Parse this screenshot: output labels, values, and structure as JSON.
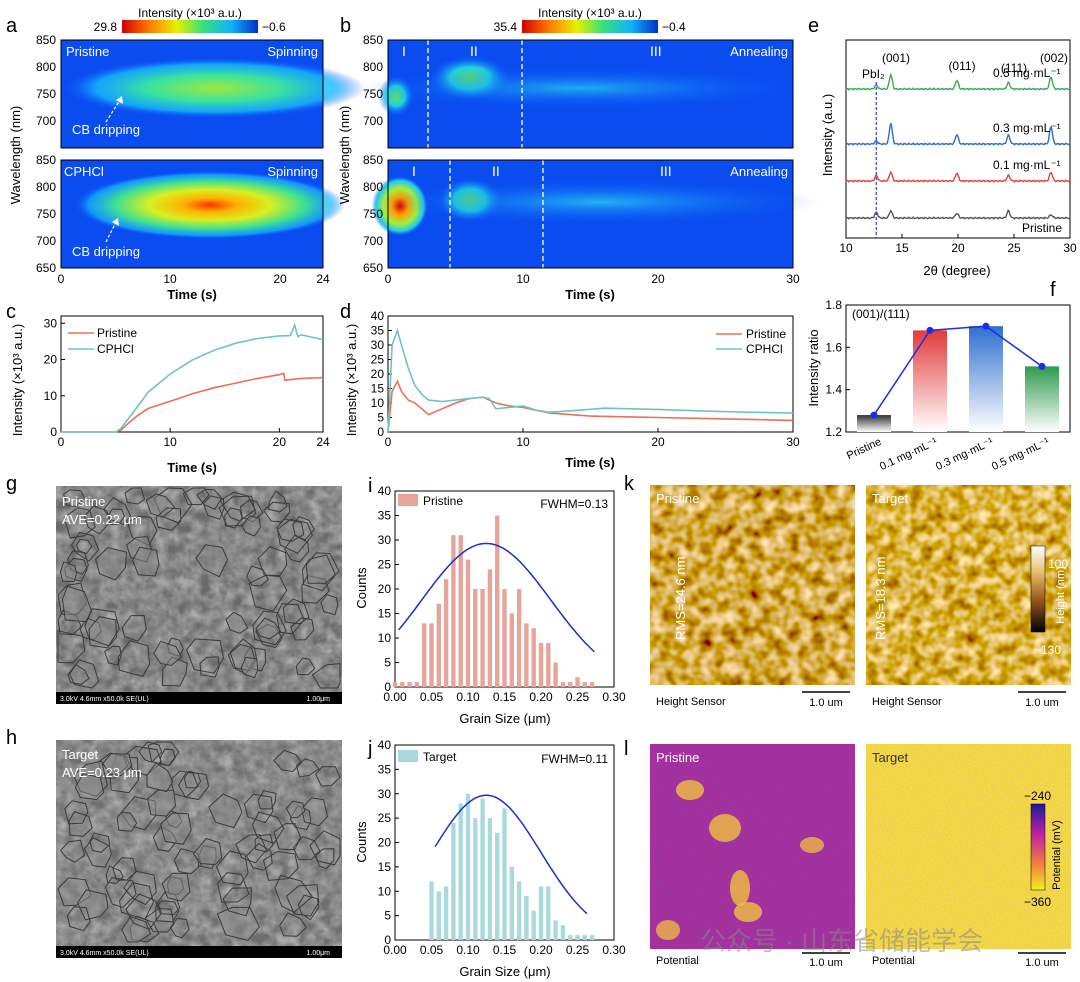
{
  "panels": {
    "a": {
      "letter": "a",
      "colorbar": {
        "label": "Intensity (×10³ a.u.)",
        "max": "29.8",
        "min": "−0.6"
      },
      "top": {
        "left": "Pristine",
        "right": "Spinning",
        "note": "CB dripping"
      },
      "bottom": {
        "left": "CPHCl",
        "right": "Spinning",
        "note": "CB dripping"
      },
      "ylabel": "Wavelength (nm)",
      "yticks_top": [
        "850",
        "800",
        "750",
        "700"
      ],
      "yticks_bottom": [
        "850",
        "800",
        "750",
        "700",
        "650"
      ],
      "xticks": [
        "0",
        "10",
        "20",
        "24"
      ],
      "xlabel": "Time (s)"
    },
    "b": {
      "letter": "b",
      "colorbar": {
        "label": "Intensity (×10³ a.u.)",
        "max": "35.4",
        "min": "−0.4"
      },
      "regions": [
        "I",
        "II",
        "III"
      ],
      "right": "Annealing",
      "ylabel": "Wavelength (nm)",
      "yticks_top": [
        "850",
        "800",
        "750",
        "700"
      ],
      "yticks_bottom": [
        "850",
        "800",
        "750",
        "700",
        "650"
      ],
      "xticks": [
        "0",
        "10",
        "20",
        "30"
      ],
      "xlabel": "Time (s)"
    },
    "c": {
      "letter": "c",
      "ylabel": "Intensity (×10³ a.u.)",
      "xlabel": "Time (s)"
    },
    "d": {
      "letter": "d",
      "ylabel": "Intensity (×10³ a.u.)",
      "xlabel": "Time (s)"
    },
    "e": {
      "letter": "e",
      "ylabel": "Intensity (a.u.)",
      "xlabel": "2θ (degree)",
      "pbi2": "PbI₂",
      "peaks": [
        "(001)",
        "(011)",
        "(111)",
        "(002)"
      ]
    },
    "f": {
      "letter": "f",
      "ylabel": "Intensity ratio"
    },
    "g": {
      "letter": "g",
      "label": "Pristine",
      "ave": "AVE=0.22 μm",
      "bar": "3.0kV 4.6mm x50.0k SE(UL)",
      "scale": "1.00μm"
    },
    "h": {
      "letter": "h",
      "label": "Target",
      "ave": "AVE=0.23 μm",
      "bar": "3.0kV 4.6mm x50.0k SE(UL)",
      "scale": "1.00μm"
    },
    "i": {
      "letter": "i",
      "legend": "Pristine",
      "fwhm": "FWHM=0.13",
      "ylabel": "Counts",
      "xlabel": "Grain Size (μm)"
    },
    "j": {
      "letter": "j",
      "legend": "Target",
      "fwhm": "FWHM=0.11",
      "ylabel": "Counts",
      "xlabel": "Grain Size (μm)"
    },
    "k": {
      "letter": "k",
      "left_label": "Pristine",
      "right_label": "Target",
      "rms_left": "RMS=24.6 nm",
      "rms_right": "RMS=18.3 nm",
      "sensor": "Height Sensor",
      "scale": "1.0 um",
      "cb_max": "100",
      "cb_min": "−130",
      "cb_label": "Height (nm)"
    },
    "l": {
      "letter": "l",
      "left_label": "Pristine",
      "right_label": "Target",
      "sensor": "Potential",
      "scale": "1.0 um",
      "cb_max": "−240",
      "cb_min": "−360",
      "cb_label": "Potential (mV)"
    }
  },
  "watermark": "公众号 · 山东省储能学会",
  "chart_data": [
    {
      "id": "c",
      "type": "line",
      "title": "",
      "xlabel": "Time (s)",
      "ylabel": "Intensity (×10³ a.u.)",
      "xlim": [
        0,
        24
      ],
      "ylim": [
        0,
        32
      ],
      "xticks": [
        0,
        10,
        20,
        24
      ],
      "yticks": [
        0,
        10,
        20,
        30
      ],
      "series": [
        {
          "name": "Pristine",
          "color": "#e8715a",
          "x": [
            0,
            5,
            5.5,
            6,
            7,
            8,
            10,
            12,
            14,
            16,
            18,
            20,
            20.4,
            20.5,
            22,
            24
          ],
          "y": [
            0,
            0,
            0.5,
            2,
            4.5,
            6.5,
            8.5,
            10.5,
            12.2,
            13.5,
            14.8,
            15.8,
            16.2,
            14.3,
            14.8,
            15.0
          ]
        },
        {
          "name": "CPHCl",
          "color": "#6fc3c6",
          "x": [
            0,
            5,
            5.5,
            6,
            7,
            8,
            10,
            12,
            14,
            16,
            18,
            20,
            21,
            21.4,
            21.7,
            22,
            24
          ],
          "y": [
            0,
            0,
            1,
            3,
            7,
            11,
            16,
            19.8,
            22.5,
            24.5,
            25.8,
            26.5,
            26.6,
            29.5,
            26.3,
            26.8,
            25.5
          ]
        }
      ]
    },
    {
      "id": "d",
      "type": "line",
      "title": "",
      "xlabel": "Time (s)",
      "ylabel": "Intensity (×10³ a.u.)",
      "xlim": [
        0,
        30
      ],
      "ylim": [
        0,
        40
      ],
      "xticks": [
        0,
        10,
        20,
        30
      ],
      "yticks": [
        0,
        5,
        10,
        15,
        20,
        25,
        30,
        35,
        40
      ],
      "series": [
        {
          "name": "Pristine",
          "color": "#e8715a",
          "x": [
            0,
            0.3,
            0.7,
            1,
            1.5,
            2,
            2.5,
            3,
            4,
            5,
            6,
            7,
            8,
            9,
            10,
            11,
            12,
            15,
            20,
            25,
            30
          ],
          "y": [
            0,
            14,
            17.5,
            14,
            11,
            10,
            8,
            6,
            8,
            10,
            11.5,
            12,
            10,
            9,
            8.5,
            7.5,
            6.5,
            5.5,
            5,
            4.5,
            4
          ]
        },
        {
          "name": "CPHCl",
          "color": "#6fc3c6",
          "x": [
            0,
            0.3,
            0.7,
            1,
            1.5,
            2,
            2.5,
            3,
            4,
            5,
            6,
            7,
            7.5,
            8,
            9,
            10,
            11,
            12,
            14,
            16,
            20,
            25,
            30
          ],
          "y": [
            0,
            30,
            35,
            30,
            22,
            16,
            13,
            11,
            10.5,
            11,
            11.5,
            12,
            11.5,
            8,
            8.5,
            9,
            7.5,
            6.8,
            7.5,
            8.2,
            7.8,
            7,
            6.5
          ]
        }
      ]
    },
    {
      "id": "e",
      "type": "line",
      "title": "",
      "xlabel": "2θ (degree)",
      "ylabel": "Intensity (a.u.)",
      "xlim": [
        10,
        30
      ],
      "xticks": [
        10,
        15,
        20,
        25,
        30
      ],
      "pbi2_position": 12.7,
      "peak_positions": [
        14.0,
        19.9,
        24.5,
        28.3
      ],
      "series": [
        {
          "name": "Pristine",
          "color": "#555555",
          "label": "Pristine",
          "peak_heights": [
            0.35,
            0.45,
            0.3,
            0.45,
            0.2
          ]
        },
        {
          "name": "0.1 mg·mL⁻¹",
          "color": "#e0413a",
          "label": "0.1 mg·mL⁻¹",
          "peak_heights": [
            0.35,
            0.55,
            0.5,
            0.35,
            0.55
          ]
        },
        {
          "name": "0.3 mg·mL⁻¹",
          "color": "#2a6fc9",
          "label": "0.3 mg·mL⁻¹",
          "peak_heights": [
            0.2,
            1.3,
            0.6,
            0.55,
            1.1
          ]
        },
        {
          "name": "0.5 mg·mL⁻¹",
          "color": "#3aa85a",
          "label": "0.5 mg·mL⁻¹",
          "peak_heights": [
            0.25,
            0.9,
            0.55,
            0.4,
            0.75
          ]
        }
      ]
    },
    {
      "id": "f",
      "type": "bar",
      "title": "(001)/(111)",
      "xlabel": "",
      "ylabel": "Intensity ratio",
      "ylim": [
        1.2,
        1.8
      ],
      "yticks": [
        1.2,
        1.4,
        1.6,
        1.8
      ],
      "categories": [
        "Pristine",
        "0.1 mg·mL⁻¹",
        "0.3 mg·mL⁻¹",
        "0.5 mg·mL⁻¹"
      ],
      "values": [
        1.28,
        1.68,
        1.7,
        1.51
      ],
      "colors": [
        "#333333",
        "#e23b3b",
        "#2f6fd0",
        "#2e9a4f"
      ]
    },
    {
      "id": "i",
      "type": "bar",
      "title": "",
      "xlabel": "Grain Size (μm)",
      "ylabel": "Counts",
      "xlim": [
        0,
        0.3
      ],
      "ylim": [
        0,
        40
      ],
      "xticks": [
        0.0,
        0.05,
        0.1,
        0.15,
        0.2,
        0.25,
        0.3
      ],
      "yticks": [
        0,
        5,
        10,
        15,
        20,
        25,
        30,
        35,
        40
      ],
      "x": [
        0.0,
        0.01,
        0.02,
        0.03,
        0.04,
        0.05,
        0.06,
        0.07,
        0.08,
        0.09,
        0.1,
        0.11,
        0.12,
        0.13,
        0.14,
        0.15,
        0.16,
        0.17,
        0.18,
        0.19,
        0.2,
        0.21,
        0.22,
        0.23,
        0.24,
        0.25,
        0.26,
        0.27,
        0.28
      ],
      "values": [
        1,
        1,
        1,
        1,
        13,
        13,
        17,
        22,
        31,
        31,
        26,
        20,
        20,
        24,
        35,
        20,
        15,
        20,
        13,
        12,
        9,
        9,
        5,
        1,
        1,
        2,
        1,
        1,
        0
      ],
      "fit": {
        "type": "gaussian",
        "center": 0.125,
        "amplitude": 29.3,
        "fwhm": 0.13
      }
    },
    {
      "id": "j",
      "type": "bar",
      "title": "",
      "xlabel": "Grain Size (μm)",
      "ylabel": "Counts",
      "xlim": [
        0,
        0.3
      ],
      "ylim": [
        0,
        40
      ],
      "xticks": [
        0.0,
        0.05,
        0.1,
        0.15,
        0.2,
        0.25,
        0.3
      ],
      "yticks": [
        0,
        5,
        10,
        15,
        20,
        25,
        30,
        35,
        40
      ],
      "x": [
        0.05,
        0.06,
        0.07,
        0.08,
        0.09,
        0.1,
        0.11,
        0.12,
        0.13,
        0.14,
        0.15,
        0.16,
        0.17,
        0.18,
        0.19,
        0.2,
        0.21,
        0.22,
        0.23,
        0.24,
        0.25,
        0.26,
        0.27
      ],
      "values": [
        12,
        10,
        11,
        24,
        28,
        30,
        25,
        29,
        25,
        22,
        27,
        15,
        12,
        9,
        6,
        11,
        11,
        4,
        3,
        1,
        1,
        1,
        1
      ],
      "fit": {
        "type": "gaussian",
        "center": 0.125,
        "amplitude": 29.7,
        "fwhm": 0.11
      }
    }
  ],
  "colors": {
    "pristine_line": "#e8715a",
    "cphcl_line": "#6fc3c6",
    "fit_line": "#1f2fbf",
    "hist_i": "#e6a59b",
    "hist_j": "#a9d8dd"
  }
}
